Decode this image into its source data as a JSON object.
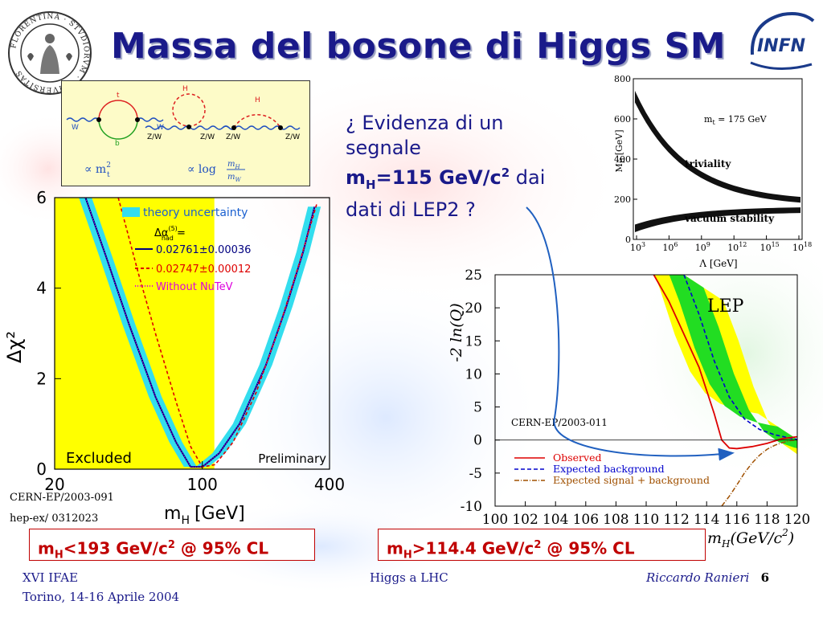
{
  "slide": {
    "title": "Massa del bosone di Higgs SM",
    "seal_text": "FLORENTINA · STVDIORVM · VNIVERSITAS",
    "logo_text": "INFN",
    "question": {
      "line1": "¿ Evidenza di un",
      "line2": "segnale",
      "mh_label": "m",
      "mh_sub": "H",
      "mh_value": "=115 GeV/c",
      "mh_sup": "2",
      "dai": "dai",
      "line4": "dati di LEP2 ?"
    },
    "refs": {
      "cern1": "CERN-EP/2003-091",
      "hep": "hep-ex/ 0312023",
      "cern2": "CERN-EP/2003-011"
    },
    "box_left": {
      "m": "m",
      "sub": "H",
      "rest": "<193 GeV/c",
      "sup": "2",
      "tail": " @ 95% CL"
    },
    "box_right": {
      "m": "m",
      "sub": "H",
      "rest": ">114.4 GeV/c",
      "sup": "2",
      "tail": " @ 95% CL"
    },
    "footer": {
      "conf": "XVI IFAE",
      "place": "Torino, 14-16 Aprile 2004",
      "center": "Higgs a LHC",
      "author": "Riccardo Ranieri",
      "page": "6"
    },
    "colors": {
      "title": "#1a1a8a",
      "box_text": "#c00000",
      "yellow": "#ffff00",
      "cyan": "#33ddee",
      "green": "#22dd22"
    }
  },
  "diagram": {
    "labels": [
      "t",
      "b",
      "W",
      "W",
      "H",
      "Z/W",
      "Z/W",
      "H",
      "Z/W",
      "Z/W"
    ],
    "formula1_prop": "∝ m",
    "formula1_sub": "t",
    "formula1_sup": "2",
    "formula2": "∝ log",
    "formula2_num": "m",
    "formula2_num_sub": "H",
    "formula2_den": "m",
    "formula2_den_sub": "W"
  },
  "chart_data": [
    {
      "type": "line",
      "id": "delta-chi2",
      "ylabel": "Δχ²",
      "xlabel": "m",
      "xlabel_sub": "H",
      "xlabel_unit": "[GeV]",
      "x_scale": "log",
      "xlim": [
        20,
        400
      ],
      "ylim": [
        0,
        6
      ],
      "x_ticks": [
        20,
        100,
        400
      ],
      "y_ticks": [
        0,
        2,
        4,
        6
      ],
      "excluded_label": "Excluded",
      "preliminary_label": "Preliminary",
      "excluded_upper": 114,
      "legend": {
        "band": "theory uncertainty",
        "header": "Δα",
        "header_sup": "(5)",
        "header_sub": "had",
        "header_tail": " =",
        "entries": [
          {
            "label": "0.02761±0.00036",
            "color": "#000080",
            "style": "solid"
          },
          {
            "label": "0.02747±0.00012",
            "color": "#dd0000",
            "style": "dashed"
          },
          {
            "label": "Without NuTeV",
            "color": "#dd00dd",
            "style": "dotted"
          }
        ]
      },
      "series": [
        {
          "name": "0.02761±0.00036",
          "x": [
            28,
            35,
            45,
            60,
            75,
            88,
            100,
            120,
            150,
            200,
            250,
            300,
            340
          ],
          "y": [
            6,
            4.7,
            3.2,
            1.6,
            0.6,
            0.05,
            0.05,
            0.35,
            1.0,
            2.3,
            3.6,
            4.8,
            5.8
          ]
        },
        {
          "name": "0.02747±0.00012",
          "x": [
            40,
            50,
            60,
            75,
            88,
            100,
            115,
            140,
            180,
            230,
            290,
            350
          ],
          "y": [
            6,
            4.3,
            3.0,
            1.5,
            0.5,
            0.05,
            0.1,
            0.6,
            1.7,
            3.1,
            4.6,
            5.9
          ]
        },
        {
          "name": "Without NuTeV",
          "x": [
            28,
            35,
            45,
            60,
            75,
            88,
            100,
            120,
            150,
            200,
            250,
            300,
            340
          ],
          "y": [
            6,
            4.7,
            3.2,
            1.6,
            0.6,
            0.05,
            0.05,
            0.35,
            1.0,
            2.3,
            3.6,
            4.8,
            5.8
          ]
        }
      ]
    },
    {
      "type": "line",
      "id": "lep-lnq",
      "title": "LEP",
      "ylabel": "-2 ln(Q)",
      "xlabel": "m",
      "xlabel_sub": "H",
      "xlabel_unit": "(GeV/c",
      "xlabel_unit_sup": "2",
      "xlabel_unit_tail": ")",
      "xlim": [
        100,
        120
      ],
      "ylim": [
        -10,
        25
      ],
      "x_ticks": [
        100,
        102,
        104,
        106,
        108,
        110,
        112,
        114,
        116,
        118,
        120
      ],
      "y_ticks": [
        25,
        20,
        15,
        10,
        5,
        0,
        -5,
        -10
      ],
      "series": [
        {
          "name": "Observed",
          "color": "#dd0000",
          "style": "solid",
          "x": [
            110.5,
            111.5,
            112.5,
            113.5,
            114.5,
            115.0,
            115.5,
            116.0,
            117,
            118,
            119,
            120
          ],
          "y": [
            25,
            21,
            16,
            11,
            4,
            0,
            -1.2,
            -1.3,
            -1.0,
            -0.5,
            0.2,
            0.5
          ]
        },
        {
          "name": "Expected background",
          "color": "#0000cc",
          "style": "dashed",
          "x": [
            112.5,
            113.5,
            114.5,
            115.5,
            116.5,
            117.5,
            118.5,
            119.5,
            120
          ],
          "y": [
            25,
            19,
            12,
            6.5,
            3.2,
            1.6,
            0.8,
            0.3,
            0.1
          ]
        },
        {
          "name": "Expected signal + background",
          "color": "#a05000",
          "style": "dashdot",
          "x": [
            115.0,
            115.5,
            116.0,
            116.5,
            117.0,
            117.5,
            118,
            118.5,
            119,
            119.5,
            120
          ],
          "y": [
            -10,
            -8.5,
            -6.8,
            -5.0,
            -3.5,
            -2.3,
            -1.4,
            -0.8,
            -0.4,
            -0.1,
            0.0
          ]
        }
      ],
      "legend_labels": [
        "Observed",
        "Expected background",
        "Expected signal + background"
      ]
    },
    {
      "type": "area",
      "id": "triviality-vacuum",
      "xlabel": "Λ [GeV]",
      "ylabel": "M",
      "ylabel_sub": "H",
      "ylabel_unit": "[GeV]",
      "annotation": "m",
      "annotation_sub": "t",
      "annotation_tail": " = 175 GeV",
      "triviality_label": "triviality",
      "vacuum_label": "vacuum stability",
      "ylim": [
        0,
        800
      ],
      "y_ticks": [
        0,
        200,
        400,
        600,
        800
      ],
      "x_ticks": [
        "10",
        "10",
        "10",
        "10",
        "10",
        "10"
      ],
      "x_tick_exps": [
        "3",
        "6",
        "9",
        "12",
        "15",
        "18"
      ]
    }
  ]
}
